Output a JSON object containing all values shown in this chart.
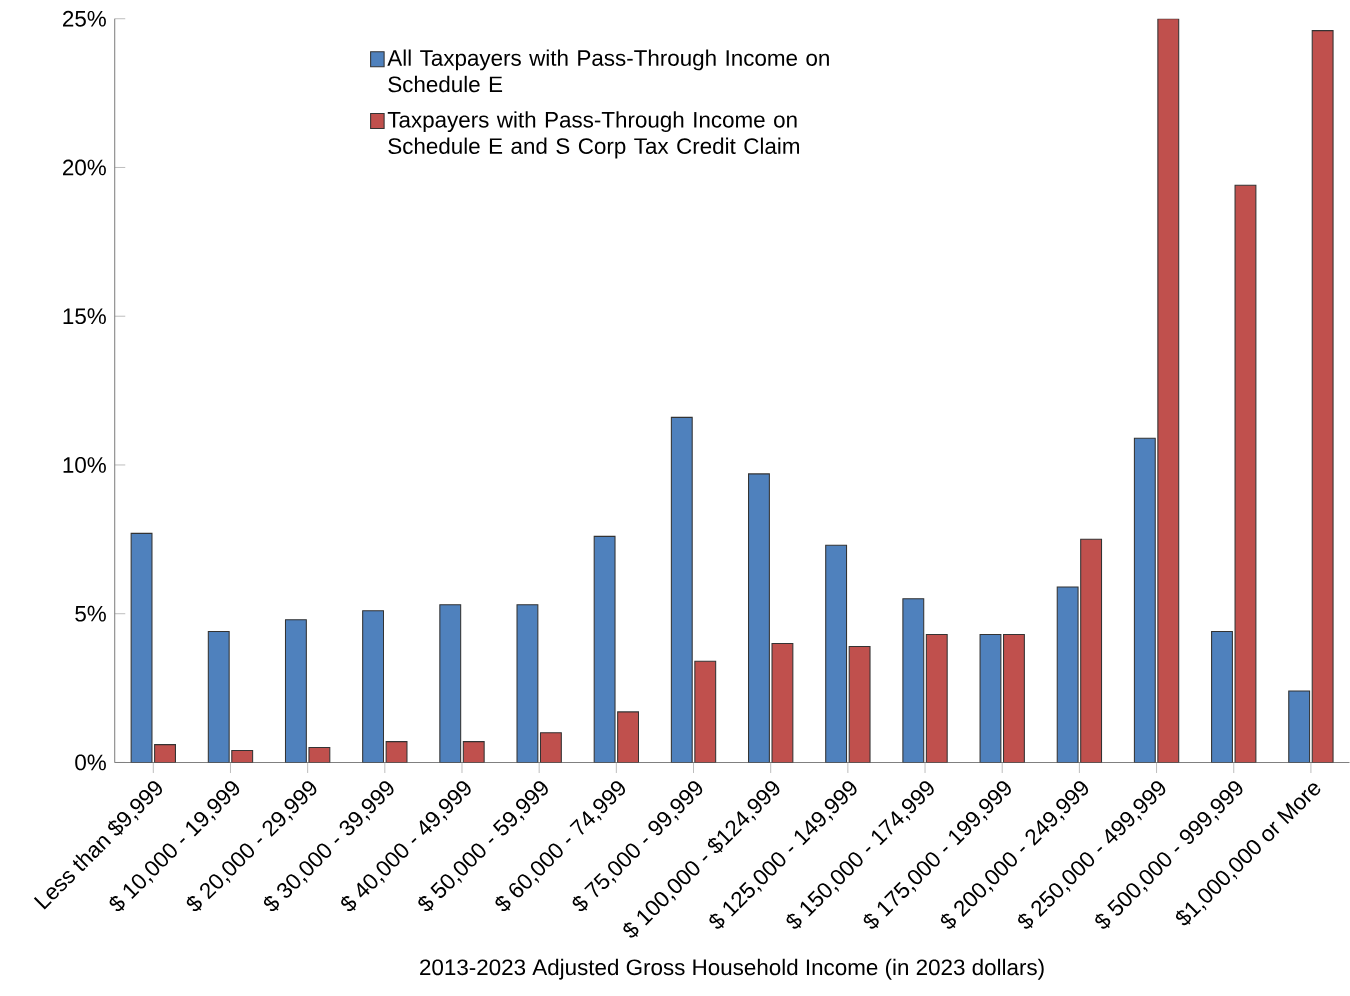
{
  "chart_data": {
    "type": "bar",
    "xlabel": "2013-2023 Adjusted Gross Household  Income  (in 2023 dollars)",
    "categories": [
      "Less than $9,999",
      "$ 10,000 - 19,999",
      "$ 20,000 - 29,999",
      "$ 30,000 - 39,999",
      "$ 40,000 - 49,999",
      "$ 50,000 - 59,999",
      "$ 60,000 - 74,999",
      "$ 75,000 - 99,999",
      "$ 100,000 - $124,999",
      "$ 125,000 - 149,999",
      "$ 150,000 - 174,999",
      "$ 175,000 - 199,999",
      "$ 200,000 - 249,999",
      "$ 250,000 - 499,999",
      "$ 500,000 - 999,999",
      "$1,000,000 or More"
    ],
    "series": [
      {
        "name": "All Taxpayers with Pass-Through Income on Schedule E",
        "color": "#4f81bd",
        "values": [
          7.7,
          4.4,
          4.8,
          5.1,
          5.3,
          5.3,
          7.6,
          11.6,
          9.7,
          7.3,
          5.5,
          4.3,
          5.9,
          10.9,
          4.4,
          2.4
        ]
      },
      {
        "name": "Taxpayers with Pass-Through Income on Schedule E and S Corp Tax Credit Claim",
        "color": "#c0504d",
        "values": [
          0.6,
          0.4,
          0.5,
          0.7,
          0.7,
          1.0,
          1.7,
          3.4,
          4.0,
          3.9,
          4.3,
          4.3,
          7.5,
          25.0,
          19.4,
          24.6
        ]
      }
    ],
    "ylim": [
      0,
      25
    ],
    "yticks": [
      {
        "value": 0,
        "label": "0%"
      },
      {
        "value": 5,
        "label": "5%"
      },
      {
        "value": 10,
        "label": "10%"
      },
      {
        "value": 15,
        "label": "15%"
      },
      {
        "value": 20,
        "label": "20%"
      },
      {
        "value": 25,
        "label": "25%"
      }
    ],
    "grid": false,
    "legend": "top"
  }
}
